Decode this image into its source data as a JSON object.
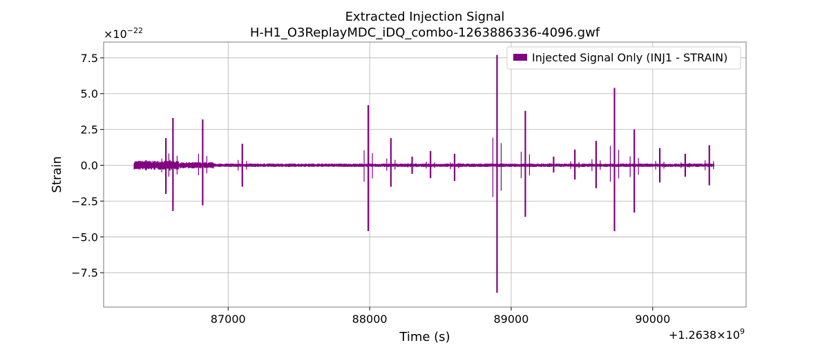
{
  "chart_data": {
    "type": "line",
    "title": "Extracted Injection Signal",
    "subtitle": "H-H1_O3ReplayMDC_iDQ_combo-1263886336-4096.gwf",
    "xlabel": "Time (s)",
    "ylabel": "Strain",
    "y_exponent_label": "×10",
    "y_exponent_power": "−22",
    "x_offset_label": "+1.2638×10",
    "x_offset_power": "9",
    "x_offset": 1263800000,
    "y_scale": 1e-22,
    "xlim": [
      86120,
      90660
    ],
    "ylim": [
      -9.9,
      8.6
    ],
    "x_ticks": [
      87000,
      88000,
      89000,
      90000
    ],
    "x_tick_labels": [
      "87000",
      "88000",
      "89000",
      "90000"
    ],
    "y_ticks": [
      -7.5,
      -5.0,
      -2.5,
      0.0,
      2.5,
      5.0,
      7.5
    ],
    "y_tick_labels": [
      "−7.5",
      "−5.0",
      "−2.5",
      "0.0",
      "2.5",
      "5.0",
      "7.5"
    ],
    "grid": true,
    "legend_position": "top-right",
    "series": [
      {
        "name": "Injected Signal Only (INJ1 - STRAIN)",
        "color": "#800080",
        "x_start": 86336,
        "x_end": 90432,
        "baseline_amplitude": 0.12,
        "spikes": [
          {
            "x": 86420,
            "pos": 0.35,
            "neg": -0.35
          },
          {
            "x": 86560,
            "pos": 1.9,
            "neg": -2.0
          },
          {
            "x": 86610,
            "pos": 3.3,
            "neg": -3.2
          },
          {
            "x": 86820,
            "pos": 3.2,
            "neg": -2.8
          },
          {
            "x": 87100,
            "pos": 1.5,
            "neg": -1.5
          },
          {
            "x": 87990,
            "pos": 4.2,
            "neg": -4.6
          },
          {
            "x": 88150,
            "pos": 1.9,
            "neg": -1.5
          },
          {
            "x": 88300,
            "pos": 0.6,
            "neg": -0.6
          },
          {
            "x": 88430,
            "pos": 1.0,
            "neg": -0.9
          },
          {
            "x": 88600,
            "pos": 0.8,
            "neg": -1.1
          },
          {
            "x": 88900,
            "pos": 7.7,
            "neg": -8.9
          },
          {
            "x": 89100,
            "pos": 3.8,
            "neg": -3.6
          },
          {
            "x": 89300,
            "pos": 0.6,
            "neg": -0.5
          },
          {
            "x": 89450,
            "pos": 1.1,
            "neg": -1.0
          },
          {
            "x": 89600,
            "pos": 1.7,
            "neg": -1.6
          },
          {
            "x": 89730,
            "pos": 5.4,
            "neg": -4.6
          },
          {
            "x": 89870,
            "pos": 2.5,
            "neg": -3.3
          },
          {
            "x": 90050,
            "pos": 1.2,
            "neg": -1.2
          },
          {
            "x": 90230,
            "pos": 0.8,
            "neg": -0.8
          },
          {
            "x": 90400,
            "pos": 1.4,
            "neg": -1.4
          }
        ]
      }
    ]
  }
}
